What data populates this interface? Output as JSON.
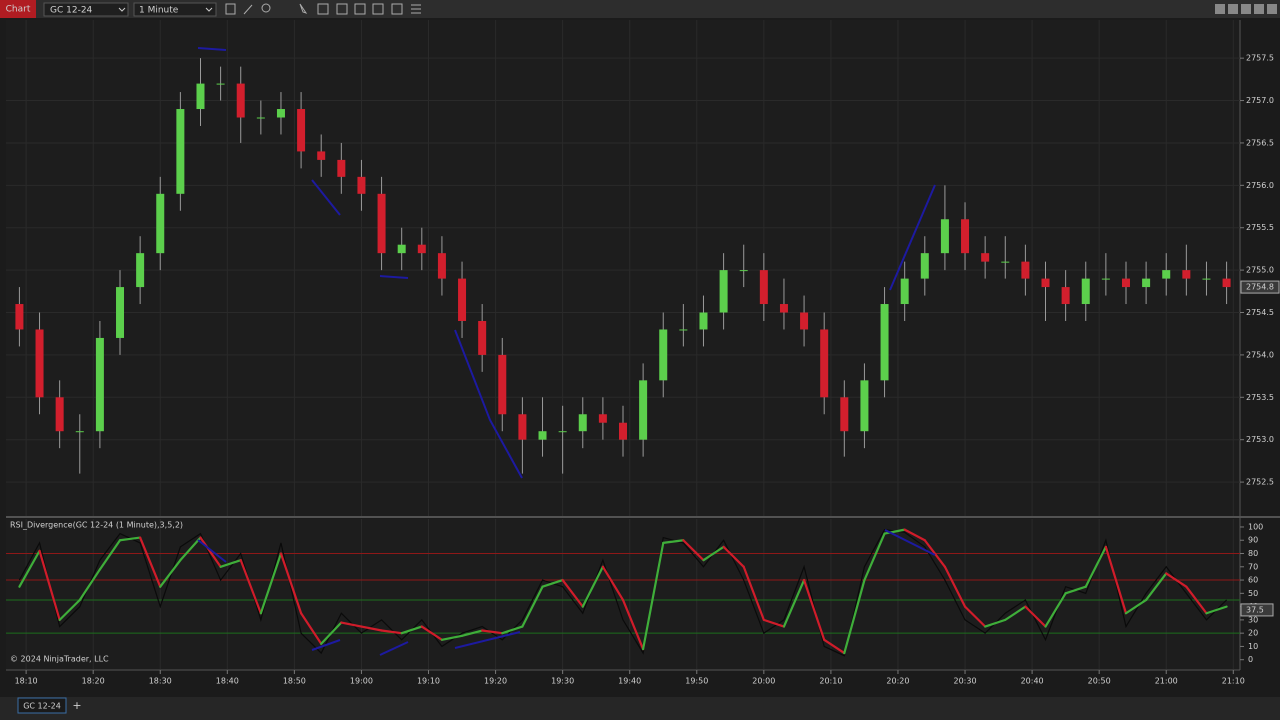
{
  "toolbar": {
    "app": "Chart",
    "instrument": "GC 12-24",
    "interval": "1 Minute"
  },
  "tab": {
    "label": "GC 12-24",
    "add": "+"
  },
  "copyright": "© 2024 NinjaTrader, LLC",
  "chart_data": [
    {
      "type": "candlestick",
      "x": [
        9,
        12,
        15,
        18,
        21,
        24,
        27,
        30,
        33,
        36,
        39,
        42,
        45,
        48,
        51,
        54,
        57,
        60,
        63,
        66,
        69,
        72,
        75,
        78,
        81,
        84,
        87,
        90,
        93,
        96,
        99,
        102,
        105,
        108,
        111,
        114,
        117,
        120,
        123,
        126,
        129,
        132,
        135,
        138,
        141,
        144,
        147,
        150,
        153,
        156,
        159,
        162,
        165,
        168,
        171,
        174,
        177,
        180,
        183,
        186,
        189
      ],
      "open": [
        2754.6,
        2754.3,
        2753.5,
        2753.1,
        2753.1,
        2754.2,
        2754.8,
        2755.2,
        2755.9,
        2756.9,
        2757.2,
        2757.2,
        2756.8,
        2756.8,
        2756.9,
        2756.4,
        2756.3,
        2756.1,
        2755.9,
        2755.2,
        2755.3,
        2755.2,
        2754.9,
        2754.4,
        2754.0,
        2753.3,
        2753.0,
        2753.1,
        2753.1,
        2753.3,
        2753.2,
        2753.0,
        2753.7,
        2754.3,
        2754.3,
        2754.5,
        2755.0,
        2755.0,
        2754.6,
        2754.5,
        2754.3,
        2753.5,
        2753.1,
        2753.7,
        2754.6,
        2754.9,
        2755.2,
        2755.6,
        2755.2,
        2755.1,
        2755.1,
        2754.9,
        2754.8,
        2754.6,
        2754.9,
        2754.9,
        2754.8,
        2754.9,
        2755.0,
        2754.9,
        2754.9
      ],
      "high": [
        2754.8,
        2754.5,
        2753.7,
        2753.3,
        2754.4,
        2755.0,
        2755.4,
        2756.1,
        2757.1,
        2757.5,
        2757.4,
        2757.4,
        2757.0,
        2757.1,
        2757.1,
        2756.6,
        2756.5,
        2756.3,
        2756.1,
        2755.5,
        2755.5,
        2755.4,
        2755.1,
        2754.6,
        2754.2,
        2753.5,
        2753.5,
        2753.4,
        2753.5,
        2753.5,
        2753.4,
        2753.9,
        2754.5,
        2754.6,
        2754.7,
        2755.2,
        2755.3,
        2755.2,
        2754.9,
        2754.7,
        2754.5,
        2753.7,
        2753.9,
        2754.8,
        2755.1,
        2755.4,
        2756.0,
        2755.8,
        2755.4,
        2755.4,
        2755.3,
        2755.1,
        2755.0,
        2755.1,
        2755.2,
        2755.1,
        2755.1,
        2755.2,
        2755.3,
        2755.1,
        2755.1
      ],
      "low": [
        2754.1,
        2753.3,
        2752.9,
        2752.6,
        2752.9,
        2754.0,
        2754.6,
        2755.0,
        2755.7,
        2756.7,
        2757.0,
        2756.5,
        2756.6,
        2756.6,
        2756.2,
        2756.1,
        2755.9,
        2755.7,
        2755.0,
        2755.0,
        2755.0,
        2754.7,
        2754.2,
        2753.8,
        2753.1,
        2752.6,
        2752.8,
        2752.6,
        2752.9,
        2753.0,
        2752.8,
        2752.8,
        2753.5,
        2754.1,
        2754.1,
        2754.3,
        2754.8,
        2754.4,
        2754.3,
        2754.1,
        2753.3,
        2752.8,
        2752.9,
        2753.5,
        2754.4,
        2754.7,
        2755.0,
        2755.0,
        2754.9,
        2754.9,
        2754.7,
        2754.4,
        2754.4,
        2754.4,
        2754.7,
        2754.6,
        2754.6,
        2754.7,
        2754.7,
        2754.7,
        2754.6
      ],
      "close": [
        2754.3,
        2753.5,
        2753.1,
        2753.1,
        2754.2,
        2754.8,
        2755.2,
        2755.9,
        2756.9,
        2757.2,
        2757.2,
        2756.8,
        2756.8,
        2756.9,
        2756.4,
        2756.3,
        2756.1,
        2755.9,
        2755.2,
        2755.3,
        2755.2,
        2754.9,
        2754.4,
        2754.0,
        2753.3,
        2753.0,
        2753.1,
        2753.1,
        2753.3,
        2753.2,
        2753.0,
        2753.7,
        2754.3,
        2754.3,
        2754.5,
        2755.0,
        2755.0,
        2754.6,
        2754.5,
        2754.3,
        2753.5,
        2753.1,
        2753.7,
        2754.6,
        2754.9,
        2755.2,
        2755.6,
        2755.2,
        2755.1,
        2755.1,
        2754.9,
        2754.8,
        2754.6,
        2754.9,
        2754.9,
        2754.8,
        2754.9,
        2755.0,
        2754.9,
        2754.9,
        2754.8
      ],
      "up_color": "#5ccf4c",
      "down_color": "#d21f2d",
      "last_price": 2754.8,
      "xlim": [
        7,
        191
      ],
      "xticks": [
        {
          "value": 10,
          "label": "18:10"
        },
        {
          "value": 20,
          "label": "18:20"
        },
        {
          "value": 30,
          "label": "18:30"
        },
        {
          "value": 40,
          "label": "18:40"
        },
        {
          "value": 50,
          "label": "18:50"
        },
        {
          "value": 60,
          "label": "19:00"
        },
        {
          "value": 70,
          "label": "19:10"
        },
        {
          "value": 80,
          "label": "19:20"
        },
        {
          "value": 90,
          "label": "19:30"
        },
        {
          "value": 100,
          "label": "19:40"
        },
        {
          "value": 110,
          "label": "19:50"
        },
        {
          "value": 120,
          "label": "20:00"
        },
        {
          "value": 130,
          "label": "20:10"
        },
        {
          "value": 140,
          "label": "20:20"
        },
        {
          "value": 150,
          "label": "20:30"
        },
        {
          "value": 160,
          "label": "20:40"
        },
        {
          "value": 170,
          "label": "20:50"
        },
        {
          "value": 180,
          "label": "21:00"
        },
        {
          "value": 190,
          "label": "21:10"
        }
      ],
      "ylim": [
        2752.1,
        2757.95
      ],
      "yticks": [
        {
          "value": 2752.5,
          "label": "2752.5"
        },
        {
          "value": 2753,
          "label": "2753.0"
        },
        {
          "value": 2753.5,
          "label": "2753.5"
        },
        {
          "value": 2754,
          "label": "2754.0"
        },
        {
          "value": 2754.5,
          "label": "2754.5"
        },
        {
          "value": 2755,
          "label": "2755.0"
        },
        {
          "value": 2755.5,
          "label": "2755.5"
        },
        {
          "value": 2756,
          "label": "2756.0"
        },
        {
          "value": 2756.5,
          "label": "2756.5"
        },
        {
          "value": 2757,
          "label": "2757.0"
        },
        {
          "value": 2757.5,
          "label": "2757.5"
        }
      ],
      "grid": true
    },
    {
      "type": "line",
      "title": "RSI_Divergence(GC 12-24 (1 Minute),3,5,2)",
      "x": [
        9,
        12,
        15,
        18,
        21,
        24,
        27,
        30,
        33,
        36,
        39,
        42,
        45,
        48,
        51,
        54,
        57,
        60,
        63,
        66,
        69,
        72,
        75,
        78,
        81,
        84,
        87,
        90,
        93,
        96,
        99,
        102,
        105,
        108,
        111,
        114,
        117,
        120,
        123,
        126,
        129,
        132,
        135,
        138,
        141,
        144,
        147,
        150,
        153,
        156,
        159,
        162,
        165,
        168,
        171,
        174,
        177,
        180,
        183,
        186,
        189
      ],
      "series": [
        {
          "color": "#0a0a0a",
          "values": [
            60,
            88,
            25,
            40,
            75,
            95,
            88,
            40,
            85,
            95,
            60,
            80,
            30,
            88,
            20,
            5,
            35,
            20,
            30,
            15,
            30,
            10,
            20,
            25,
            15,
            30,
            60,
            55,
            35,
            75,
            30,
            5,
            92,
            88,
            70,
            90,
            60,
            20,
            30,
            70,
            10,
            3,
            70,
            98,
            96,
            85,
            60,
            30,
            20,
            35,
            45,
            15,
            55,
            50,
            90,
            25,
            50,
            70,
            50,
            30,
            45
          ]
        },
        {
          "rising_color": "#3fae3a",
          "falling_color": "#d01c2a",
          "values": [
            55,
            82,
            30,
            45,
            68,
            90,
            92,
            55,
            75,
            92,
            70,
            75,
            35,
            80,
            35,
            12,
            28,
            25,
            22,
            20,
            25,
            15,
            18,
            22,
            20,
            25,
            55,
            60,
            40,
            70,
            45,
            8,
            88,
            90,
            75,
            85,
            70,
            30,
            25,
            60,
            15,
            5,
            60,
            95,
            98,
            90,
            70,
            40,
            25,
            30,
            40,
            25,
            50,
            55,
            85,
            35,
            45,
            65,
            55,
            35,
            40
          ]
        }
      ],
      "last_value": 37.5,
      "levels": [
        80,
        60,
        45,
        20
      ],
      "level_colors": [
        "#8e1818",
        "#8e1818",
        "#1d6e1d",
        "#1d6e1d"
      ],
      "xlim": [
        7,
        191
      ],
      "ylim": [
        -7,
        106
      ],
      "yticks": [
        0,
        10,
        20,
        30,
        40,
        50,
        60,
        70,
        80,
        90,
        100
      ]
    }
  ]
}
